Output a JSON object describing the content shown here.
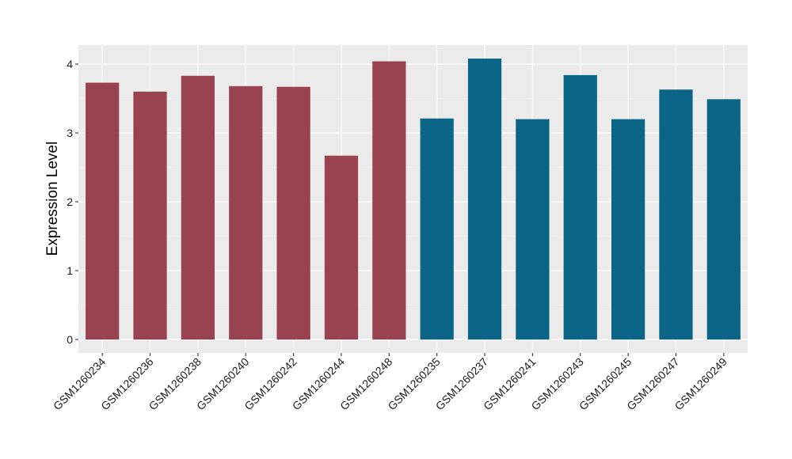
{
  "chart_data": {
    "type": "bar",
    "title": "",
    "xlabel": "",
    "ylabel": "Expression Level",
    "ylim": [
      0,
      4.25
    ],
    "yticks": [
      0,
      1,
      2,
      3,
      4
    ],
    "grid": true,
    "legend": "none",
    "categories": [
      "GSM1260234",
      "GSM1260236",
      "GSM1260238",
      "GSM1260240",
      "GSM1260242",
      "GSM1260244",
      "GSM1260248",
      "GSM1260235",
      "GSM1260237",
      "GSM1260241",
      "GSM1260243",
      "GSM1260245",
      "GSM1260247",
      "GSM1260249"
    ],
    "values": [
      3.73,
      3.6,
      3.83,
      3.68,
      3.67,
      2.67,
      4.04,
      3.21,
      4.08,
      3.2,
      3.84,
      3.2,
      3.63,
      3.49
    ],
    "group_sizes": [
      7,
      7
    ],
    "colors": {
      "group1": "#9a4350",
      "group2": "#0b6587",
      "panel_bg": "#ebebeb",
      "grid_major": "#ffffff",
      "grid_minor": "#f5f5f5"
    }
  }
}
